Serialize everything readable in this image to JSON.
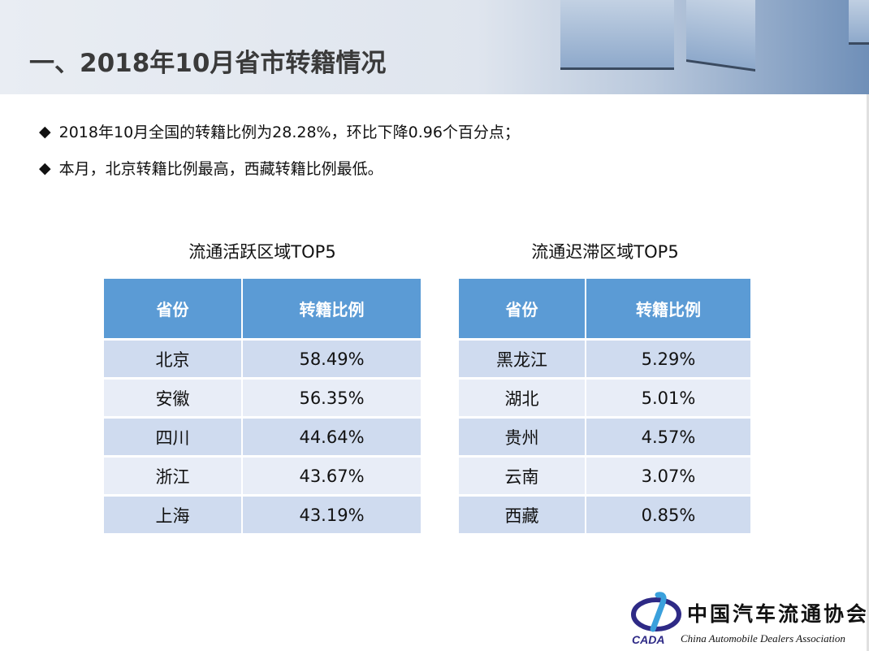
{
  "title": "一、2018年10月省市转籍情况",
  "bullets": [
    "2018年10月全国的转籍比例为28.28%，环比下降0.96个百分点；",
    "本月，北京转籍比例最高，西藏转籍比例最低。"
  ],
  "bullet_icon": "diamond",
  "colors": {
    "header": "#5b9bd5",
    "row_odd": "#cfdbef",
    "row_even": "#e8edf7"
  },
  "tables": [
    {
      "caption": "流通活跃区域TOP5",
      "headers": [
        "省份",
        "转籍比例"
      ],
      "rows": [
        [
          "北京",
          "58.49%"
        ],
        [
          "安徽",
          "56.35%"
        ],
        [
          "四川",
          "44.64%"
        ],
        [
          "浙江",
          "43.67%"
        ],
        [
          "上海",
          "43.19%"
        ]
      ]
    },
    {
      "caption": "流通迟滞区域TOP5",
      "headers": [
        "省份",
        "转籍比例"
      ],
      "rows": [
        [
          "黑龙江",
          "5.29%"
        ],
        [
          "湖北",
          "5.01%"
        ],
        [
          "贵州",
          "4.57%"
        ],
        [
          "云南",
          "3.07%"
        ],
        [
          "西藏",
          "0.85%"
        ]
      ]
    }
  ],
  "logo": {
    "cn": "中国汽车流通协会",
    "en": "China Automobile Dealers Association",
    "abbr": "CADA"
  }
}
